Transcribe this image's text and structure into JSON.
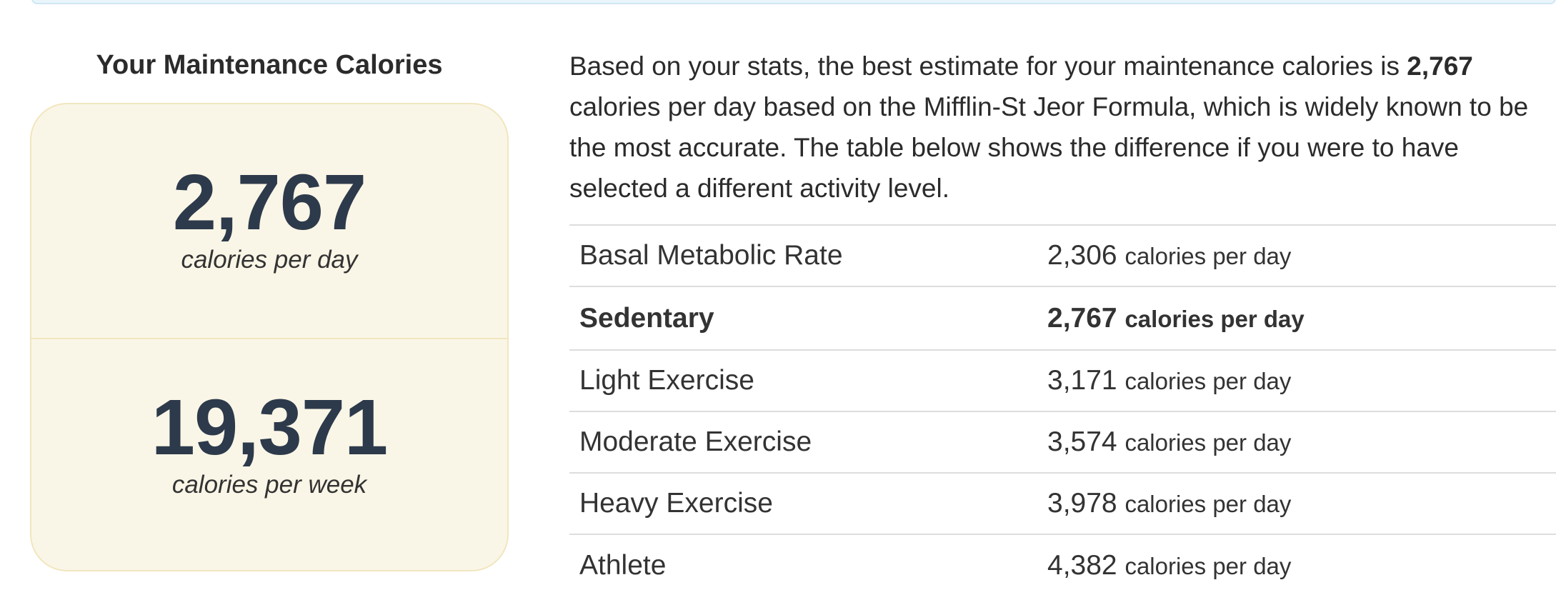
{
  "summary": {
    "heading": "Your Maintenance Calories",
    "daily_value": "2,767",
    "daily_unit": "calories per day",
    "weekly_value": "19,371",
    "weekly_unit": "calories per week"
  },
  "intro": {
    "part1": "Based on your stats, the best estimate for your maintenance calories is ",
    "highlight": "2,767",
    "part2": " calories per day based on the Mifflin-St Jeor Formula, which is widely known to be the most accurate. The table below shows the difference if you were to have selected a different activity level."
  },
  "table": {
    "unit": "calories per day",
    "rows": [
      {
        "label": "Basal Metabolic Rate",
        "value": "2,306"
      },
      {
        "label": "Sedentary",
        "value": "2,767",
        "selected": true
      },
      {
        "label": "Light Exercise",
        "value": "3,171"
      },
      {
        "label": "Moderate Exercise",
        "value": "3,574"
      },
      {
        "label": "Heavy Exercise",
        "value": "3,978"
      },
      {
        "label": "Athlete",
        "value": "4,382"
      }
    ]
  },
  "colors": {
    "card_background": "#faf6e7",
    "card_border": "#f1e6bf",
    "number_color": "#2d3a4b",
    "banner_background": "#e9f5fb"
  }
}
